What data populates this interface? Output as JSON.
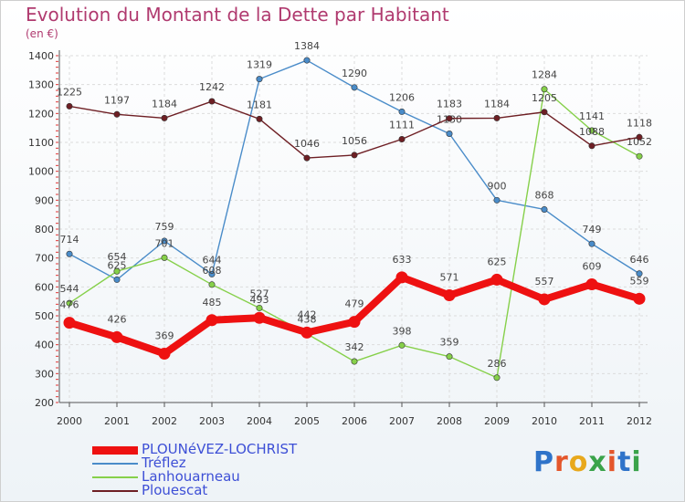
{
  "title": "Evolution du Montant de la Dette par Habitant",
  "subtitle": "(en €)",
  "logo": {
    "letters": [
      "P",
      "r",
      "o",
      "x",
      "i",
      "t",
      "i"
    ],
    "colors": [
      "#2f73c9",
      "#e4562b",
      "#e8a81d",
      "#3aa34a",
      "#e4562b",
      "#2f73c9",
      "#3aa34a"
    ]
  },
  "chart_data": {
    "type": "line",
    "x": [
      "2000",
      "2001",
      "2002",
      "2003",
      "2004",
      "2005",
      "2006",
      "2007",
      "2008",
      "2009",
      "2010",
      "2011",
      "2012"
    ],
    "ylim": [
      200,
      1400
    ],
    "yticks": [
      "200",
      "300",
      "400",
      "500",
      "600",
      "700",
      "800",
      "900",
      "1000",
      "1100",
      "1200",
      "1300",
      "1400"
    ],
    "grid": true,
    "legend_position": "bottom-left",
    "series": [
      {
        "name": "PLOUNéVEZ-LOCHRIST",
        "color": "#ee1111",
        "values": [
          476,
          426,
          369,
          485,
          493,
          442,
          479,
          633,
          571,
          625,
          557,
          609,
          559
        ],
        "labels": [
          "476",
          "426",
          "369",
          "485",
          "493",
          "442",
          "479",
          "633",
          "571",
          "625",
          "557",
          "609",
          "559"
        ]
      },
      {
        "name": "Tréflez",
        "color": "#4a8cc9",
        "values": [
          714,
          625,
          759,
          644,
          1319,
          1384,
          1290,
          1206,
          1130,
          900,
          868,
          749,
          646
        ],
        "labels": [
          "714",
          "625",
          "759",
          "644",
          "1319",
          "1384",
          "1290",
          "1206",
          "1130",
          "900",
          "868",
          "749",
          "646"
        ]
      },
      {
        "name": "Lanhouarneau",
        "color": "#86d04a",
        "values": [
          544,
          654,
          701,
          608,
          527,
          438,
          342,
          398,
          359,
          286,
          1284,
          1141,
          1052
        ],
        "labels": [
          "544",
          "654",
          "701",
          "608",
          "527",
          "438",
          "342",
          "398",
          "359",
          "286",
          "1284",
          "1141",
          "1052"
        ]
      },
      {
        "name": "Plouescat",
        "color": "#6e1f24",
        "values": [
          1225,
          1197,
          1184,
          1242,
          1181,
          1046,
          1056,
          1111,
          1183,
          1184,
          1205,
          1088,
          1118
        ],
        "labels": [
          "1225",
          "1197",
          "1184",
          "1242",
          "1181",
          "1046",
          "1056",
          "1111",
          "1183",
          "1184",
          "1205",
          "1088",
          "1118"
        ]
      }
    ]
  }
}
